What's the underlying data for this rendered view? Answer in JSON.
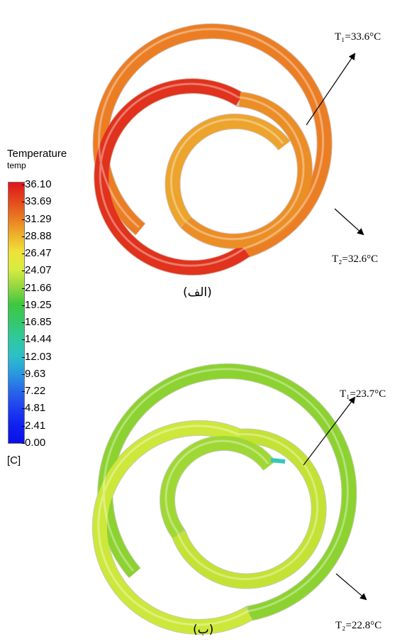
{
  "legend": {
    "title": "Temperature",
    "subtitle": "temp",
    "unit": "[C]",
    "ticks": [
      "36.10",
      "33.69",
      "31.29",
      "28.88",
      "26.47",
      "24.07",
      "21.66",
      "19.25",
      "16.85",
      "14.44",
      "12.03",
      "9.63",
      "7.22",
      "4.81",
      "2.41",
      "0.00"
    ],
    "colors": [
      "#e0141c",
      "#e2461c",
      "#ea7822",
      "#eeb02a",
      "#eee23a",
      "#d8ec40",
      "#94d640",
      "#3ec840",
      "#36c86a",
      "#30c8a0",
      "#2cc0c8",
      "#2a98e0",
      "#2868e8",
      "#1e3ef0",
      "#1020f0",
      "#0a10e6"
    ]
  },
  "panel_a": {
    "caption": "(الف)",
    "t1": "T₁=33.6°C",
    "t2": "T₂=32.6°C",
    "colors": {
      "outer": "#eb7e24",
      "mid": "#e0321c",
      "inner": "#eb8e26",
      "core": "#eca42c"
    }
  },
  "panel_b": {
    "caption": "(ب)",
    "t1": "T₁=23.7°C",
    "t2": "T₂=22.8°C",
    "colors": {
      "outer": "#8cd230",
      "mid": "#cde83a",
      "inner": "#c4e234",
      "core": "#9fd834"
    }
  }
}
